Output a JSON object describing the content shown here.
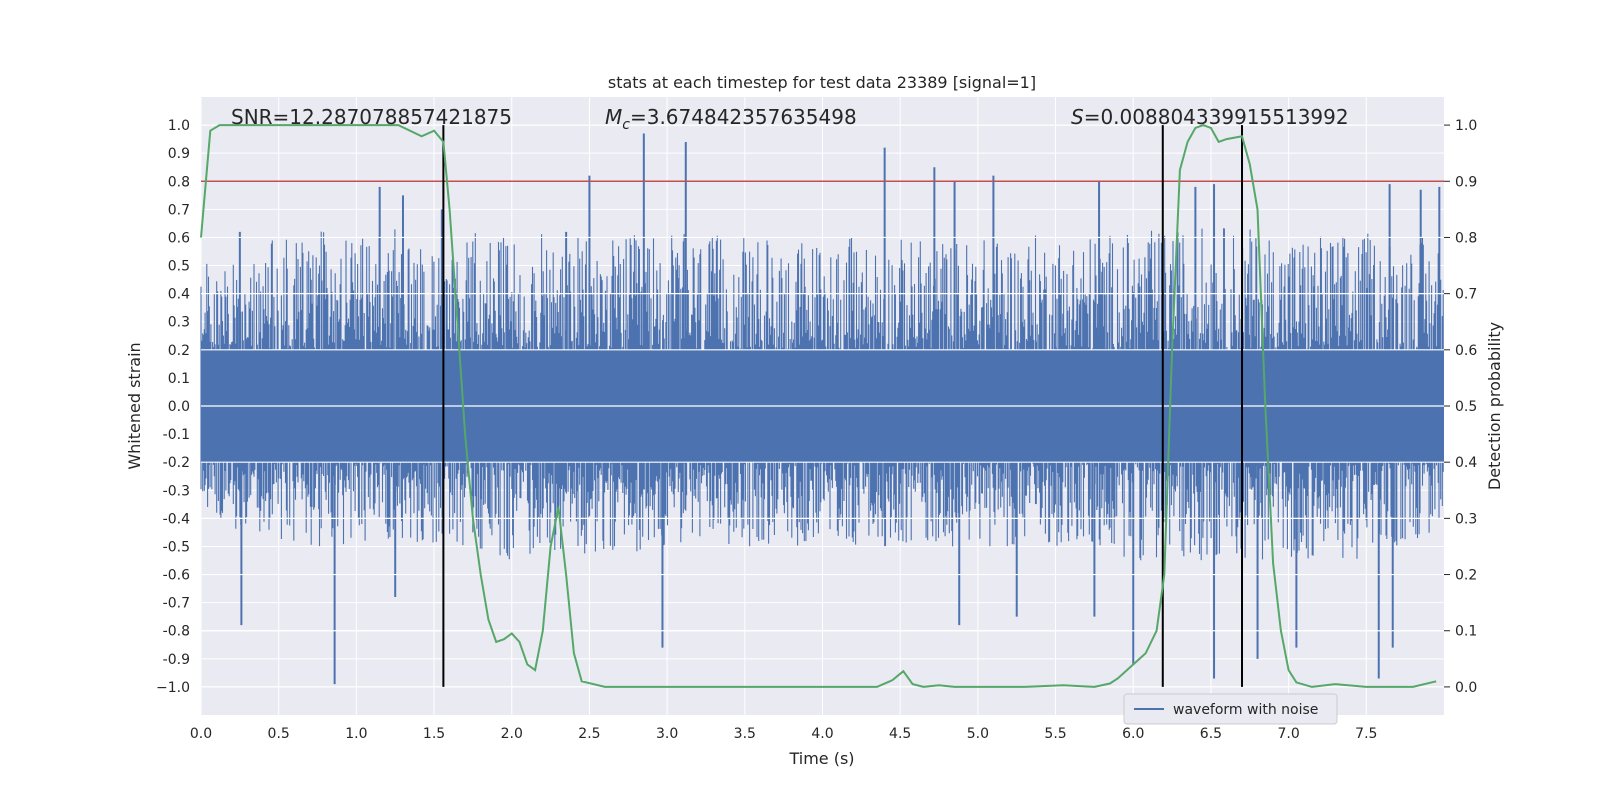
{
  "chart_data": {
    "type": "line",
    "title": "stats at each timestep for test data 23389 [signal=1]",
    "xlabel": "Time (s)",
    "ylabel": "Whitened strain",
    "ylabel_right": "Detection probability",
    "xlim": [
      0.0,
      8.0
    ],
    "ylim": [
      -1.1,
      1.1
    ],
    "ylim_right": [
      -0.05,
      1.05
    ],
    "x_ticks": [
      0.0,
      0.5,
      1.0,
      1.5,
      2.0,
      2.5,
      3.0,
      3.5,
      4.0,
      4.5,
      5.0,
      5.5,
      6.0,
      6.5,
      7.0,
      7.5
    ],
    "x_tick_labels": [
      "0.0",
      "0.5",
      "1.0",
      "1.5",
      "2.0",
      "2.5",
      "3.0",
      "3.5",
      "4.0",
      "4.5",
      "5.0",
      "5.5",
      "6.0",
      "6.5",
      "7.0",
      "7.5"
    ],
    "y_ticks": [
      1.0,
      0.9,
      0.8,
      0.7,
      0.6,
      0.5,
      0.4,
      0.3,
      0.2,
      0.1,
      0.0,
      -0.1,
      -0.2,
      -0.3,
      -0.4,
      -0.5,
      -0.6,
      -0.7,
      -0.8,
      -0.9,
      -1.0
    ],
    "y_tick_labels": [
      "1.0",
      "0.9",
      "0.8",
      "0.7",
      "0.6",
      "0.5",
      "0.4",
      "0.3",
      "0.2",
      "0.1",
      "0.0",
      "-0.1",
      "-0.2",
      "-0.3",
      "-0.4",
      "-0.5",
      "-0.6",
      "-0.7",
      "-0.8",
      "-0.9",
      "−1.0"
    ],
    "y_ticks_right": [
      1.0,
      0.9,
      0.8,
      0.7,
      0.6,
      0.5,
      0.4,
      0.3,
      0.2,
      0.1,
      0.0
    ],
    "y_tick_labels_right": [
      "1.0",
      "0.9",
      "0.8",
      "0.7",
      "0.6",
      "0.5",
      "0.4",
      "0.3",
      "0.2",
      "0.1",
      "0.0"
    ],
    "annotations": {
      "snr": "SNR=12.287078857421875",
      "mc_symbol": "M",
      "mc_sub": "c",
      "mc_value": "=3.674842357635498",
      "s_symbol": "S",
      "s_value": "=0.008804339915513992"
    },
    "threshold_right": 0.9,
    "vertical_lines": [
      1.56,
      6.19,
      6.7
    ],
    "grid": true,
    "legend": {
      "position": "bottom-right",
      "entries": [
        "waveform with noise"
      ]
    },
    "series": [
      {
        "name": "waveform with noise",
        "axis": "left",
        "style": "dense-noise",
        "upper_envelope": [
          [
            0.0,
            0.55
          ],
          [
            0.5,
            0.6
          ],
          [
            1.0,
            0.65
          ],
          [
            1.5,
            0.62
          ],
          [
            2.0,
            0.62
          ],
          [
            2.5,
            0.6
          ],
          [
            3.0,
            0.62
          ],
          [
            3.5,
            0.6
          ],
          [
            4.0,
            0.6
          ],
          [
            4.5,
            0.6
          ],
          [
            5.0,
            0.6
          ],
          [
            5.5,
            0.62
          ],
          [
            6.0,
            0.62
          ],
          [
            6.5,
            0.65
          ],
          [
            7.0,
            0.62
          ],
          [
            7.5,
            0.62
          ],
          [
            8.0,
            0.6
          ]
        ],
        "lower_envelope": [
          [
            0.0,
            -0.4
          ],
          [
            0.5,
            -0.5
          ],
          [
            1.0,
            -0.5
          ],
          [
            1.5,
            -0.5
          ],
          [
            2.0,
            -0.55
          ],
          [
            2.5,
            -0.55
          ],
          [
            3.0,
            -0.5
          ],
          [
            3.5,
            -0.5
          ],
          [
            4.0,
            -0.5
          ],
          [
            4.5,
            -0.5
          ],
          [
            5.0,
            -0.5
          ],
          [
            5.5,
            -0.5
          ],
          [
            6.0,
            -0.55
          ],
          [
            6.5,
            -0.55
          ],
          [
            7.0,
            -0.55
          ],
          [
            7.5,
            -0.55
          ],
          [
            8.0,
            -0.45
          ]
        ],
        "peaks": [
          [
            0.25,
            0.62
          ],
          [
            1.15,
            0.78
          ],
          [
            1.3,
            0.75
          ],
          [
            1.55,
            0.7
          ],
          [
            2.35,
            0.62
          ],
          [
            2.5,
            0.82
          ],
          [
            2.85,
            0.97
          ],
          [
            3.12,
            0.94
          ],
          [
            4.4,
            0.92
          ],
          [
            4.72,
            0.85
          ],
          [
            4.85,
            0.8
          ],
          [
            5.1,
            0.82
          ],
          [
            5.78,
            0.8
          ],
          [
            6.4,
            0.78
          ],
          [
            6.52,
            0.79
          ],
          [
            7.65,
            0.79
          ],
          [
            7.85,
            0.77
          ],
          [
            7.97,
            0.78
          ]
        ],
        "troughs": [
          [
            0.26,
            -0.78
          ],
          [
            0.86,
            -0.99
          ],
          [
            1.25,
            -0.68
          ],
          [
            2.3,
            -0.38
          ],
          [
            2.97,
            -0.86
          ],
          [
            4.88,
            -0.78
          ],
          [
            5.25,
            -0.75
          ],
          [
            5.75,
            -0.75
          ],
          [
            6.0,
            -0.92
          ],
          [
            6.52,
            -0.97
          ],
          [
            6.8,
            -0.9
          ],
          [
            7.05,
            -0.86
          ],
          [
            7.58,
            -0.97
          ],
          [
            7.67,
            -0.86
          ]
        ]
      },
      {
        "name": "detection probability",
        "axis": "right",
        "color": "#55a868",
        "x": [
          0.0,
          0.06,
          0.12,
          0.3,
          0.5,
          0.8,
          1.0,
          1.27,
          1.42,
          1.5,
          1.56,
          1.6,
          1.65,
          1.7,
          1.75,
          1.8,
          1.85,
          1.9,
          1.95,
          2.0,
          2.05,
          2.1,
          2.15,
          2.2,
          2.25,
          2.3,
          2.35,
          2.4,
          2.45,
          2.6,
          2.8,
          3.0,
          3.2,
          3.5,
          4.0,
          4.35,
          4.45,
          4.52,
          4.58,
          4.65,
          4.75,
          4.85,
          5.0,
          5.3,
          5.55,
          5.75,
          5.85,
          5.9,
          6.0,
          6.08,
          6.15,
          6.2,
          6.25,
          6.3,
          6.35,
          6.4,
          6.45,
          6.5,
          6.55,
          6.6,
          6.7,
          6.75,
          6.8,
          6.85,
          6.9,
          6.95,
          7.0,
          7.05,
          7.15,
          7.3,
          7.5,
          7.8,
          7.95
        ],
        "values": [
          0.8,
          0.99,
          1.0,
          1.0,
          1.0,
          1.0,
          1.0,
          1.0,
          0.98,
          0.99,
          0.97,
          0.85,
          0.65,
          0.45,
          0.3,
          0.2,
          0.12,
          0.08,
          0.085,
          0.095,
          0.08,
          0.04,
          0.03,
          0.1,
          0.25,
          0.32,
          0.2,
          0.06,
          0.01,
          0.0,
          0.0,
          0.0,
          0.0,
          0.0,
          0.0,
          0.0,
          0.012,
          0.028,
          0.005,
          0.0,
          0.003,
          0.0,
          0.0,
          0.0,
          0.003,
          0.0,
          0.006,
          0.015,
          0.04,
          0.06,
          0.1,
          0.2,
          0.6,
          0.92,
          0.97,
          0.995,
          1.0,
          0.995,
          0.97,
          0.975,
          0.98,
          0.93,
          0.85,
          0.5,
          0.22,
          0.1,
          0.03,
          0.008,
          0.0,
          0.005,
          0.0,
          0.0,
          0.01
        ]
      },
      {
        "name": "threshold",
        "axis": "right",
        "color": "#c44e52",
        "value": 0.9
      }
    ]
  },
  "colors": {
    "background": "#eaeaf2",
    "grid": "#ffffff",
    "waveform": "#4c72b0",
    "probability": "#55a868",
    "threshold": "#c44e52",
    "vline": "#000000"
  }
}
